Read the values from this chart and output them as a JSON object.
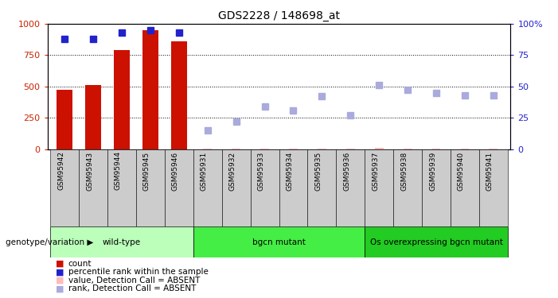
{
  "title": "GDS2228 / 148698_at",
  "samples": [
    "GSM95942",
    "GSM95943",
    "GSM95944",
    "GSM95945",
    "GSM95946",
    "GSM95931",
    "GSM95932",
    "GSM95933",
    "GSM95934",
    "GSM95935",
    "GSM95936",
    "GSM95937",
    "GSM95938",
    "GSM95939",
    "GSM95940",
    "GSM95941"
  ],
  "groups": [
    {
      "label": "wild-type",
      "color": "#bbffbb",
      "indices": [
        0,
        1,
        2,
        3,
        4
      ]
    },
    {
      "label": "bgcn mutant",
      "color": "#44ee44",
      "indices": [
        5,
        6,
        7,
        8,
        9,
        10
      ]
    },
    {
      "label": "Os overexpressing bgcn mutant",
      "color": "#22cc22",
      "indices": [
        11,
        12,
        13,
        14,
        15
      ]
    }
  ],
  "count_values": [
    472,
    511,
    793,
    951,
    863,
    null,
    null,
    null,
    null,
    null,
    null,
    null,
    null,
    null,
    null,
    null
  ],
  "percentile_present": [
    88,
    88,
    93,
    95,
    93,
    null,
    null,
    null,
    null,
    null,
    null,
    null,
    null,
    null,
    null,
    null
  ],
  "value_absent": [
    null,
    null,
    null,
    null,
    null,
    4,
    2,
    2,
    2,
    2,
    2,
    8,
    2,
    6,
    4,
    4
  ],
  "rank_absent": [
    null,
    null,
    null,
    null,
    null,
    15,
    22,
    34,
    31,
    42,
    27,
    51,
    47,
    45,
    43,
    43
  ],
  "ylim_left": [
    0,
    1000
  ],
  "ylim_right": [
    0,
    100
  ],
  "yticks_left": [
    0,
    250,
    500,
    750,
    1000
  ],
  "yticks_right": [
    0,
    25,
    50,
    75,
    100
  ],
  "grid_values": [
    250,
    500,
    750
  ],
  "bar_color": "#cc1100",
  "percentile_color": "#2222cc",
  "absent_value_color": "#ffbbbb",
  "absent_rank_color": "#aaaadd",
  "legend_label_count": "count",
  "legend_label_pct": "percentile rank within the sample",
  "legend_label_val_abs": "value, Detection Call = ABSENT",
  "legend_label_rank_abs": "rank, Detection Call = ABSENT",
  "xlabel_group": "genotype/variation",
  "tick_bg_color": "#cccccc",
  "bar_width": 0.55
}
